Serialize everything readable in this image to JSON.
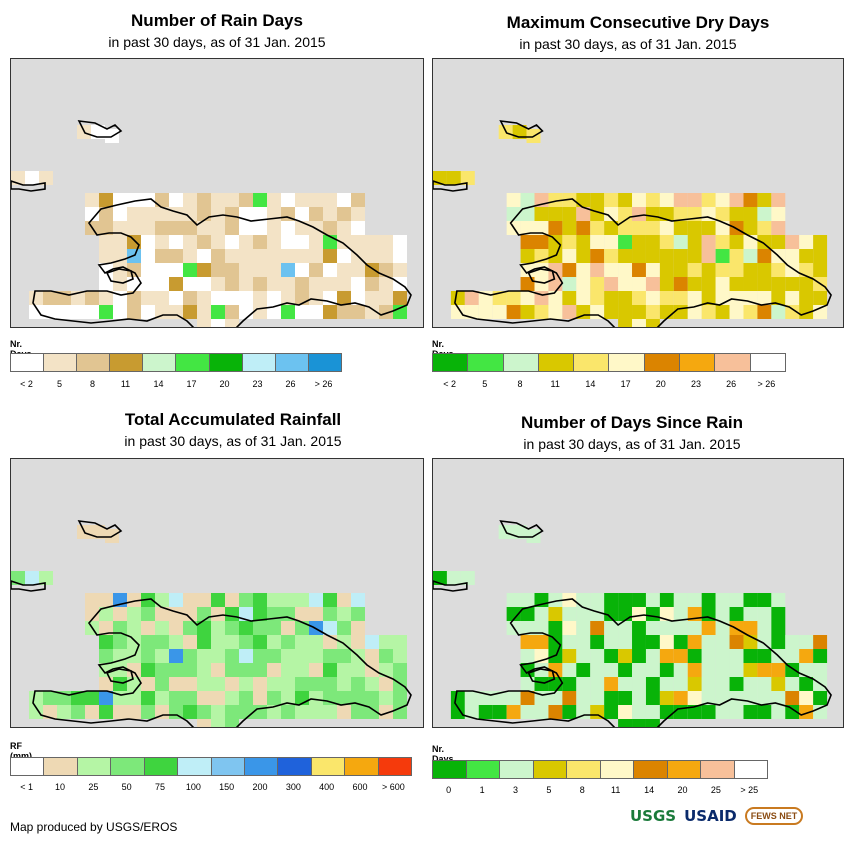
{
  "panels": [
    {
      "id": "rain-days",
      "title": "Number of Rain Days",
      "subtitle": "in past 30 days, as of 31 Jan. 2015",
      "legend_title": "Nr. Days",
      "legend_colors": [
        "#ffffff",
        "#f3e3c6",
        "#e1c592",
        "#c89b30",
        "#ccf5cc",
        "#43e643",
        "#08b308",
        "#bfeef7",
        "#6cc2f0",
        "#1a93d6"
      ],
      "legend_labels": [
        "< 2",
        "5",
        "8",
        "11",
        "14",
        "17",
        "20",
        "23",
        "26",
        "> 26"
      ]
    },
    {
      "id": "dry-days",
      "title": "Maximum Consecutive Dry Days",
      "subtitle": "in past 30 days, as of 31 Jan. 2015",
      "legend_title": "Nr. Days",
      "legend_colors": [
        "#08b308",
        "#43e643",
        "#ccf5cc",
        "#d9c800",
        "#fae66b",
        "#fff8c8",
        "#db8400",
        "#f5a80f",
        "#f7c09a",
        "#ffffff"
      ],
      "legend_labels": [
        "< 2",
        "5",
        "8",
        "11",
        "14",
        "17",
        "20",
        "23",
        "26",
        "> 26"
      ]
    },
    {
      "id": "rainfall",
      "title": "Total Accumulated Rainfall",
      "subtitle": "in past 30 days, as of 31 Jan. 2015",
      "legend_title": "RF (mm)",
      "legend_colors": [
        "#ffffff",
        "#eed9b4",
        "#b5f5a5",
        "#7de87a",
        "#3fd43f",
        "#bfeef7",
        "#7fc5f0",
        "#3a96e8",
        "#1f62db",
        "#fae66b",
        "#f5a80f",
        "#f53a0c"
      ],
      "legend_labels": [
        "< 1",
        "10",
        "25",
        "50",
        "75",
        "100",
        "150",
        "200",
        "300",
        "400",
        "600",
        "> 600"
      ]
    },
    {
      "id": "since-rain",
      "title": "Number of Days Since Rain",
      "subtitle": "in past 30 days, as of 31 Jan. 2015",
      "legend_title": "Nr. Days",
      "legend_colors": [
        "#08b308",
        "#43e643",
        "#ccf5cc",
        "#d9c800",
        "#fae66b",
        "#fff8c8",
        "#db8400",
        "#f5a80f",
        "#f7c09a",
        "#ffffff"
      ],
      "legend_labels": [
        "0",
        "1",
        "3",
        "5",
        "8",
        "11",
        "14",
        "20",
        "25",
        "> 25"
      ]
    }
  ],
  "credit": "Map produced by USGS/EROS",
  "logos": {
    "usgs": "USGS",
    "usaid": "USAID",
    "fews": "FEWS NET"
  }
}
